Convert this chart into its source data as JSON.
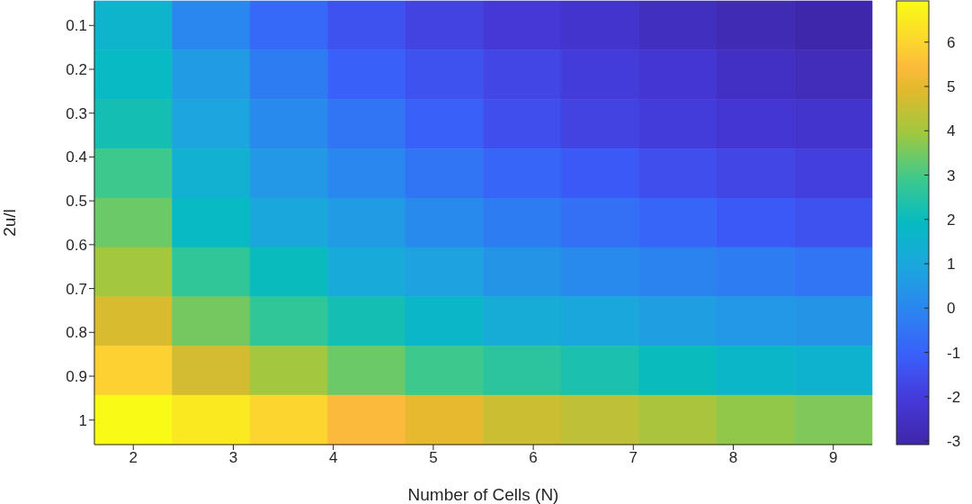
{
  "chart_data": {
    "type": "heatmap",
    "xlabel": "Number of Cells (N)",
    "ylabel": "2u/l",
    "x": [
      2,
      2.778,
      3.556,
      4.333,
      5.111,
      5.889,
      6.667,
      7.444,
      8.222,
      9
    ],
    "xlim": [
      1.611,
      9.389
    ],
    "xticks": [
      2,
      3,
      4,
      5,
      6,
      7,
      8,
      9
    ],
    "ylim": [
      1.056,
      0.044
    ],
    "yticks": [
      0.1,
      0.2,
      0.3,
      0.4,
      0.5,
      0.6,
      0.7,
      0.8,
      0.9,
      1
    ],
    "cells": [
      [
        1.6,
        0.0,
        -0.8,
        -1.4,
        -1.8,
        -2.1,
        -2.3,
        -2.6,
        -2.8,
        -3.0
      ],
      [
        1.9,
        0.6,
        -0.3,
        -1.0,
        -1.4,
        -1.7,
        -2.0,
        -2.2,
        -2.5,
        -2.7
      ],
      [
        2.2,
        0.9,
        0.1,
        -0.5,
        -1.0,
        -1.5,
        -1.8,
        -2.0,
        -2.2,
        -2.3
      ],
      [
        2.9,
        1.4,
        0.5,
        0.0,
        -0.5,
        -0.9,
        -1.2,
        -1.5,
        -1.7,
        -1.9
      ],
      [
        3.4,
        1.9,
        1.0,
        0.6,
        0.1,
        -0.3,
        -0.6,
        -0.9,
        -1.2,
        -1.4
      ],
      [
        4.0,
        2.7,
        2.0,
        1.1,
        0.8,
        0.4,
        0.1,
        -0.1,
        -0.3,
        -0.5
      ],
      [
        4.8,
        3.5,
        2.7,
        2.2,
        1.7,
        1.2,
        1.0,
        0.7,
        0.5,
        0.4
      ],
      [
        5.9,
        4.7,
        4.0,
        3.4,
        2.9,
        2.6,
        2.3,
        2.0,
        1.7,
        1.5
      ],
      [
        6.9,
        6.5,
        6.0,
        5.4,
        5.0,
        4.6,
        4.4,
        4.1,
        3.8,
        3.6
      ]
    ],
    "clim": [
      -3.08,
      6.93
    ],
    "cticks": [
      -3,
      -2,
      -1,
      0,
      1,
      2,
      3,
      4,
      5,
      6
    ]
  }
}
